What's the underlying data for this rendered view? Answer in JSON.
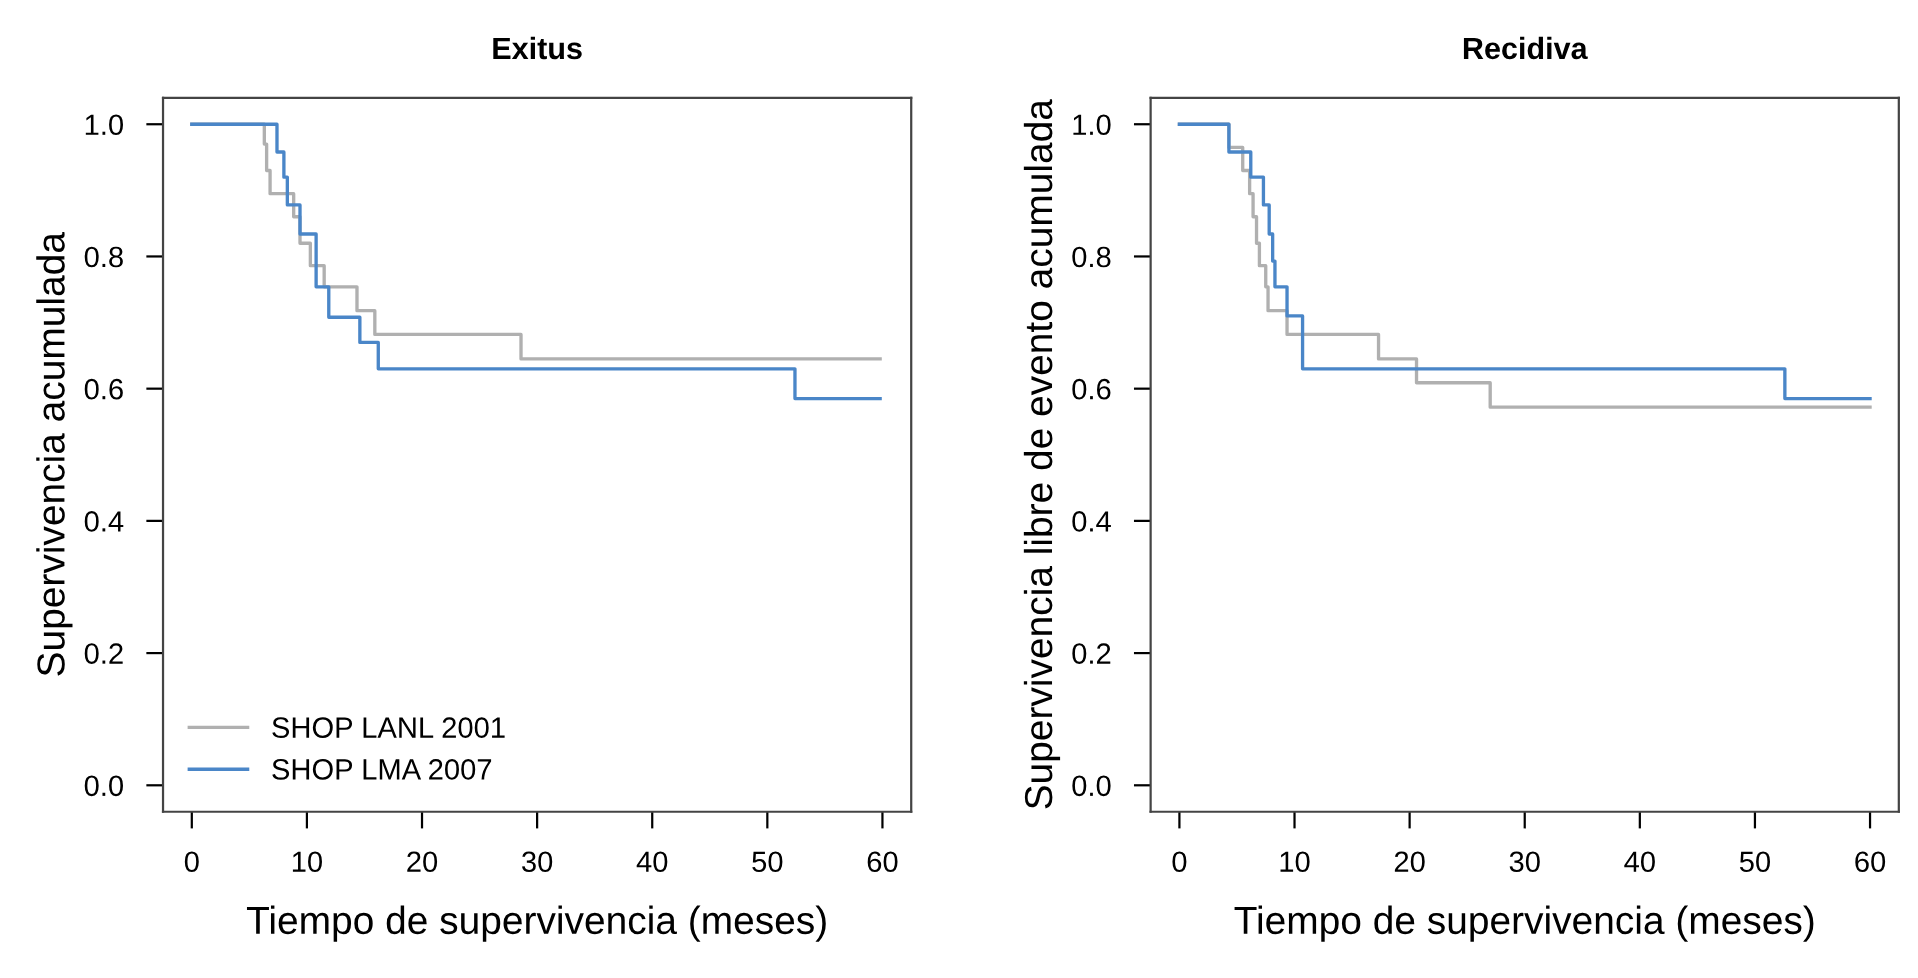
{
  "chart_data": [
    {
      "type": "step",
      "title": "Exitus",
      "xlabel": "Tiempo de supervivencia (meses)",
      "ylabel": "Supervivencia acumulada",
      "xlim": [
        -2.5,
        62.5
      ],
      "ylim": [
        -0.04,
        1.04
      ],
      "xticks": [
        0,
        10,
        20,
        30,
        40,
        50,
        60
      ],
      "yticks": [
        {
          "value": 0,
          "label": "0.0"
        },
        {
          "value": 0.2,
          "label": "0.2"
        },
        {
          "value": 0.4,
          "label": "0.4"
        },
        {
          "value": 0.6,
          "label": "0.6"
        },
        {
          "value": 0.8,
          "label": "0.8"
        },
        {
          "value": 1,
          "label": "1.0"
        }
      ],
      "grid": false,
      "legend": "bottom left",
      "series": [
        {
          "name": "SHOP LANL 2001",
          "color": "#b0b0b0",
          "x": [
            0,
            6.3,
            6.5,
            6.8,
            8.85,
            9.4,
            10.3,
            11.5,
            14.35,
            15.9,
            28.6,
            59.8
          ],
          "values": [
            1.0,
            0.97,
            0.93,
            0.895,
            0.86,
            0.82,
            0.786,
            0.754,
            0.718,
            0.682,
            0.645,
            0.645
          ]
        },
        {
          "name": "SHOP LMA 2007",
          "color": "#4a86c8",
          "x": [
            0,
            7.4,
            8.0,
            8.3,
            9.4,
            10.8,
            11.9,
            14.6,
            16.2,
            52.4,
            59.8
          ],
          "values": [
            1.0,
            0.958,
            0.92,
            0.878,
            0.834,
            0.754,
            0.708,
            0.67,
            0.63,
            0.585,
            0.585
          ]
        }
      ]
    },
    {
      "type": "step",
      "title": "Recidiva",
      "xlabel": "Tiempo de supervivencia (meses)",
      "ylabel": "Supervivencia libre de evento acumulada",
      "xlim": [
        -2.5,
        62.5
      ],
      "ylim": [
        -0.04,
        1.04
      ],
      "xticks": [
        0,
        10,
        20,
        30,
        40,
        50,
        60
      ],
      "yticks": [
        {
          "value": 0,
          "label": "0.0"
        },
        {
          "value": 0.2,
          "label": "0.2"
        },
        {
          "value": 0.4,
          "label": "0.4"
        },
        {
          "value": 0.6,
          "label": "0.6"
        },
        {
          "value": 0.8,
          "label": "0.8"
        },
        {
          "value": 1,
          "label": "1.0"
        }
      ],
      "grid": false,
      "legend": false,
      "series": [
        {
          "color": "#b0b0b0",
          "x": [
            0,
            4.3,
            5.5,
            6.1,
            6.4,
            6.7,
            6.95,
            7.5,
            7.7,
            9.35,
            17.3,
            20.6,
            27.0,
            60
          ],
          "values": [
            1.0,
            0.965,
            0.93,
            0.895,
            0.86,
            0.82,
            0.786,
            0.754,
            0.718,
            0.682,
            0.645,
            0.609,
            0.572,
            0.572
          ]
        },
        {
          "color": "#4a86c8",
          "x": [
            0,
            4.3,
            6.2,
            7.3,
            7.8,
            8.1,
            8.3,
            9.35,
            10.7,
            52.6,
            60
          ],
          "values": [
            1.0,
            0.958,
            0.92,
            0.878,
            0.834,
            0.793,
            0.754,
            0.71,
            0.63,
            0.585,
            0.585
          ]
        }
      ]
    }
  ]
}
